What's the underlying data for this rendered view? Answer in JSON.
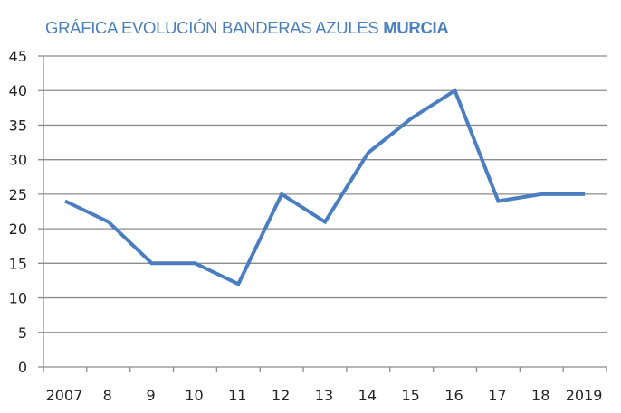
{
  "title": {
    "prefix": "GRÁFICA EVOLUCIÓN BANDERAS AZULES ",
    "emphasis": "MURCIA"
  },
  "colors": {
    "title": "#4a7fc0",
    "line": "#4a7ec1",
    "grid": "#8c8c8c",
    "axis": "#8c8c8c"
  },
  "chart_data": {
    "type": "line",
    "title": "GRÁFICA EVOLUCIÓN BANDERAS AZULES MURCIA",
    "xlabel": "",
    "ylabel": "",
    "categories": [
      "2007",
      "8",
      "9",
      "10",
      "11",
      "12",
      "13",
      "14",
      "15",
      "16",
      "17",
      "18",
      "2019"
    ],
    "years": [
      2007,
      2008,
      2009,
      2010,
      2011,
      2012,
      2013,
      2014,
      2015,
      2016,
      2017,
      2018,
      2019
    ],
    "series": [
      {
        "name": "Banderas Azules Murcia",
        "values": [
          24,
          21,
          15,
          15,
          12,
          25,
          21,
          31,
          36,
          40,
          24,
          25,
          25
        ]
      }
    ],
    "ylim": [
      0,
      45
    ],
    "yticks": [
      0,
      5,
      10,
      15,
      20,
      25,
      30,
      35,
      40,
      45
    ],
    "grid": true,
    "legend": "none"
  }
}
